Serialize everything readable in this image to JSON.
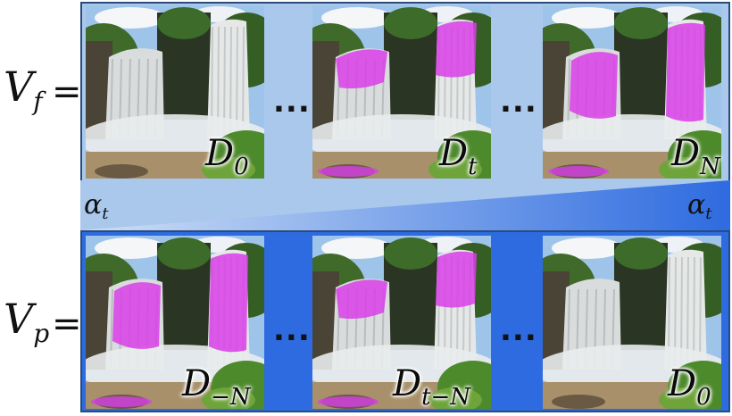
{
  "rows": {
    "forward": {
      "symbol": "V",
      "subscript": "f",
      "equals": "=",
      "frames": [
        {
          "symbol": "D",
          "subscript": "0",
          "highlight_level": 0.0
        },
        {
          "symbol": "D",
          "subscript": "t",
          "highlight_level": 0.5
        },
        {
          "symbol": "D",
          "subscript": "N",
          "highlight_level": 1.0
        }
      ]
    },
    "backward": {
      "symbol": "V",
      "subscript": "p",
      "equals": "=",
      "frames": [
        {
          "symbol": "D",
          "subscript": "−N",
          "highlight_level": 1.0
        },
        {
          "symbol": "D",
          "subscript": "t−N",
          "highlight_level": 0.5
        },
        {
          "symbol": "D",
          "subscript": "0",
          "highlight_level": 0.0
        }
      ]
    }
  },
  "ellipsis": "...",
  "alpha": {
    "symbol": "α",
    "subscript": "t"
  },
  "colors": {
    "top_panel": "#a9c8ec",
    "bottom_panel": "#2e6be0",
    "gradient_light": "#cfe0f5",
    "gradient_dark": "#2e6be0",
    "highlight_mask": "#d83ee8"
  }
}
